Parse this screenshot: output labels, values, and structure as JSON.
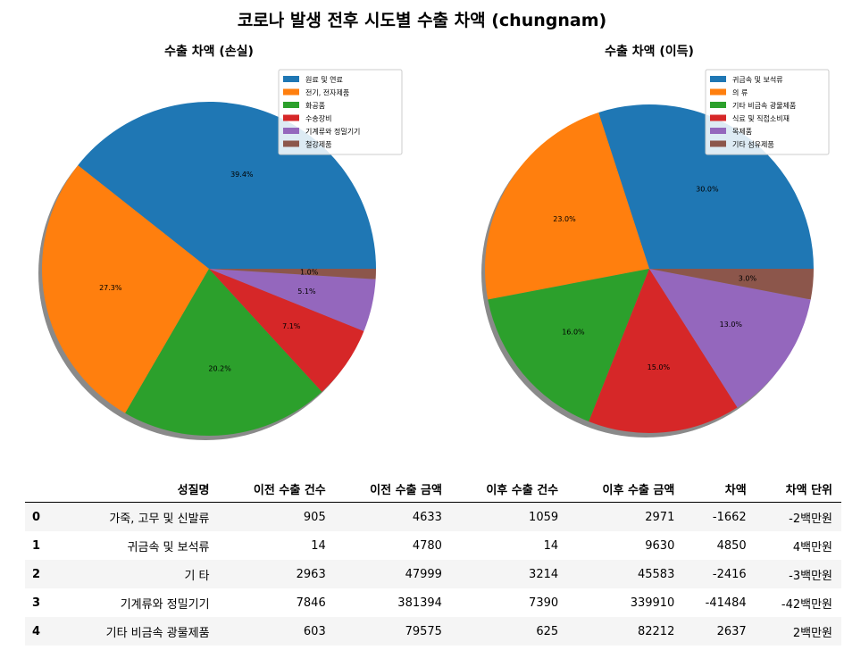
{
  "title": "코로나 발생 전후 시도별 수출 차액 (chungnam)",
  "chart_data": [
    {
      "type": "pie",
      "title": "수출 차액 (손실)",
      "labels": [
        "원료 및 연료",
        "전기, 전자제품",
        "화공품",
        "수송장비",
        "기계류와 정밀기기",
        "철강제품"
      ],
      "values": [
        39.4,
        27.3,
        20.2,
        7.1,
        5.1,
        1.0
      ],
      "value_labels": [
        "39.4%",
        "27.3%",
        "20.2%",
        "7.1%",
        "5.1%",
        "1.0%"
      ],
      "colors": [
        "#1f77b4",
        "#ff7f0e",
        "#2ca02c",
        "#d62728",
        "#9467bd",
        "#8c564b"
      ],
      "start_angle": 0,
      "direction": "counterclockwise",
      "shadow": true,
      "legend": "top-right"
    },
    {
      "type": "pie",
      "title": "수출 차액 (이득)",
      "labels": [
        "귀금속 및 보석류",
        "의 류",
        "기타 비금속 광물제품",
        "식료 및 직접소비재",
        "목제품",
        "기타 섬유제품"
      ],
      "values": [
        30.0,
        23.0,
        16.0,
        15.0,
        13.0,
        3.0
      ],
      "value_labels": [
        "30.0%",
        "23.0%",
        "16.0%",
        "15.0%",
        "13.0%",
        "3.0%"
      ],
      "colors": [
        "#1f77b4",
        "#ff7f0e",
        "#2ca02c",
        "#d62728",
        "#9467bd",
        "#8c564b"
      ],
      "start_angle": 0,
      "direction": "counterclockwise",
      "shadow": true,
      "legend": "top-right"
    }
  ],
  "table": {
    "columns": [
      "",
      "성질명",
      "이전 수출 건수",
      "이전 수출 금액",
      "이후 수출 건수",
      "이후 수출 금액",
      "차액",
      "차액 단위"
    ],
    "rows": [
      [
        "0",
        "가죽, 고무 및 신발류",
        "905",
        "4633",
        "1059",
        "2971",
        "-1662",
        "-2백만원"
      ],
      [
        "1",
        "귀금속 및 보석류",
        "14",
        "4780",
        "14",
        "9630",
        "4850",
        "4백만원"
      ],
      [
        "2",
        "기 타",
        "2963",
        "47999",
        "3214",
        "45583",
        "-2416",
        "-3백만원"
      ],
      [
        "3",
        "기계류와 정밀기기",
        "7846",
        "381394",
        "7390",
        "339910",
        "-41484",
        "-42백만원"
      ],
      [
        "4",
        "기타 비금속 광물제품",
        "603",
        "79575",
        "625",
        "82212",
        "2637",
        "2백만원"
      ]
    ]
  }
}
